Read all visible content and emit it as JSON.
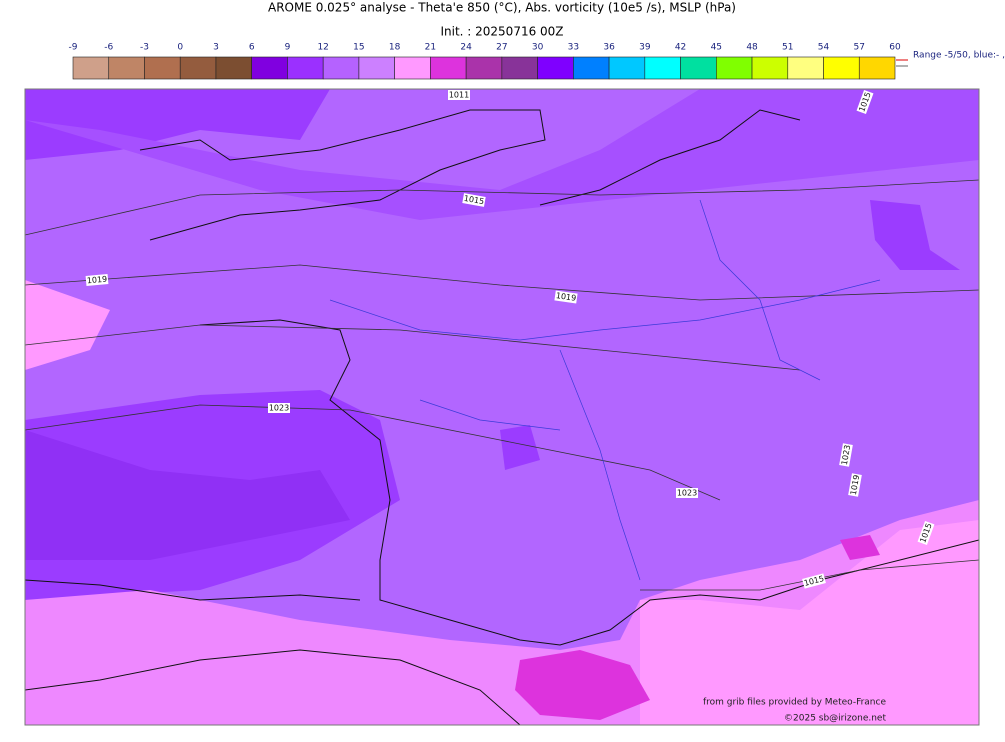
{
  "title": "AROME 0.025° analyse - Theta'e 850 (°C), Abs. vorticity (10e5 /s), MSLP (hPa)",
  "subtitle": "Init. : 20250716 00Z",
  "colorbar": {
    "ticks": [
      -9,
      -6,
      -3,
      0,
      3,
      6,
      9,
      12,
      15,
      18,
      21,
      24,
      27,
      30,
      33,
      36,
      39,
      42,
      45,
      48,
      51,
      54,
      57,
      60
    ],
    "colors": [
      "#cfa08a",
      "#bf8566",
      "#b06f4f",
      "#945c3e",
      "#7c4e31",
      "#8000e0",
      "#9b30ff",
      "#b562ff",
      "#cc80ff",
      "#ff99ff",
      "#dd33dd",
      "#aa33aa",
      "#883399",
      "#7f00ff",
      "#0080ff",
      "#00c8ff",
      "#00ffff",
      "#00e0a0",
      "#80ff00",
      "#ccff00",
      "#ffff80",
      "#ffff00",
      "#ffd700"
    ]
  },
  "range_note": "Range -5/50, blue:- , r",
  "isobar_labels": [
    "1011",
    "1015",
    "1015",
    "1019",
    "1019",
    "1023",
    "1023",
    "1023",
    "1019",
    "1015",
    "1015"
  ],
  "credits": [
    "from grib files provided by Meteo-France",
    "©2025 sb@irizone.net"
  ]
}
